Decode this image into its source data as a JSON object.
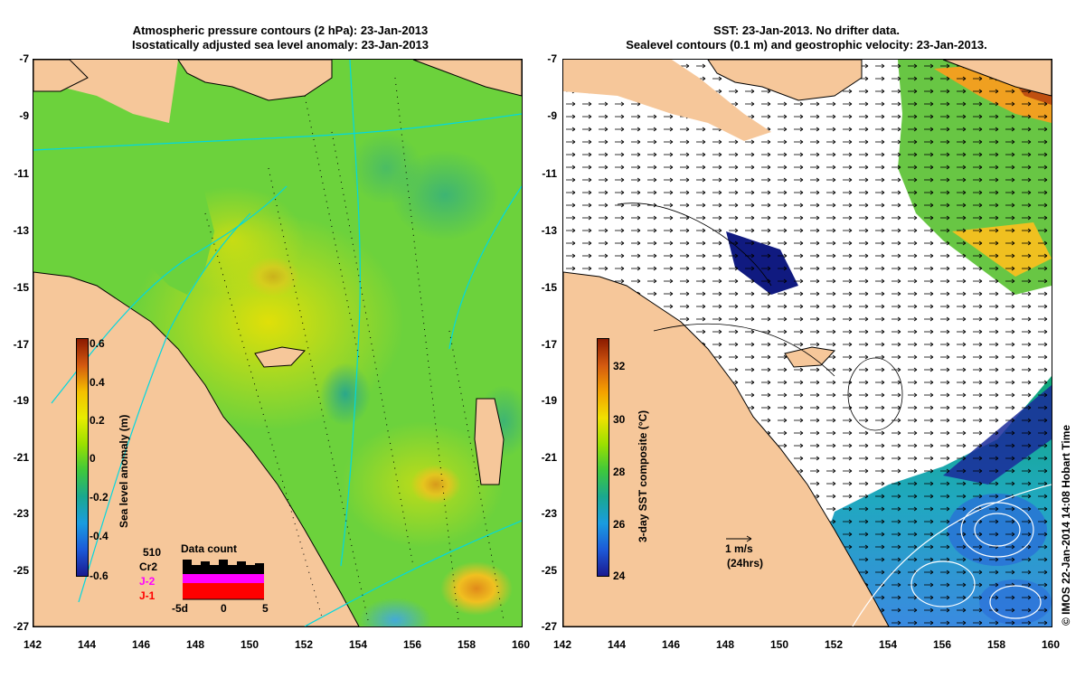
{
  "left_panel": {
    "title_line1": "Atmospheric pressure contours (2 hPa): 23-Jan-2013",
    "title_line2": "Isostatically adjusted sea level anomaly: 23-Jan-2013",
    "colorbar": {
      "label": "Sea level anomaly (m)",
      "ticks": [
        "0.6",
        "0.4",
        "0.2",
        "0",
        "-0.2",
        "-0.4",
        "-0.6"
      ]
    },
    "data_count": {
      "title": "Data count",
      "label_510": "510",
      "label_cr2": "Cr2",
      "label_j2": "J-2",
      "label_j1": "J-1",
      "x_labels": [
        "-5d",
        "0",
        "5"
      ],
      "colors": {
        "total": "#000000",
        "j2": "#ff00ff",
        "j1": "#ff0000"
      }
    }
  },
  "right_panel": {
    "title_line1": "SST: 23-Jan-2013. No drifter data.",
    "title_line2": "Sealevel contours (0.1 m) and geostrophic velocity: 23-Jan-2013.",
    "colorbar": {
      "label": "3-day SST composite (°C)",
      "ticks": [
        "32",
        "30",
        "28",
        "26",
        "24"
      ]
    },
    "velocity_scale": {
      "line1": "1 m/s",
      "line2": "(24hrs)"
    }
  },
  "axes": {
    "y_ticks": [
      "-7",
      "-9",
      "-11",
      "-13",
      "-15",
      "-17",
      "-19",
      "-21",
      "-23",
      "-25",
      "-27"
    ],
    "x_ticks": [
      "142",
      "144",
      "146",
      "148",
      "150",
      "152",
      "154",
      "156",
      "158",
      "160"
    ]
  },
  "credit": "© IMOS 22-Jan-2014 14:08 Hobart Time",
  "colors": {
    "land": "#f6c79a",
    "ocean_mid": "#7fd23a",
    "contour": "#00e0e0"
  }
}
